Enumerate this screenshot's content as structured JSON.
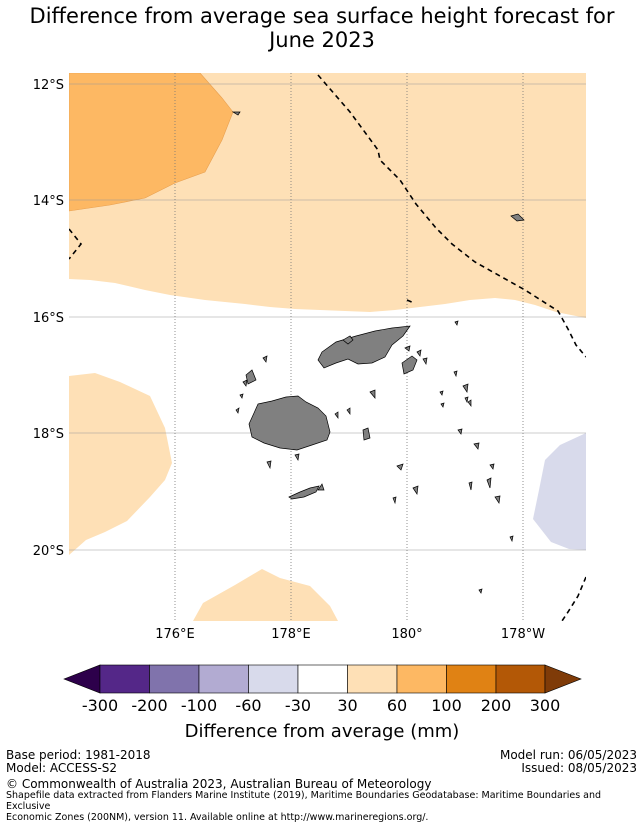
{
  "title": {
    "line1": "Difference from average sea surface height forecast for",
    "line2": "June 2023"
  },
  "map": {
    "lat_labels": [
      "12°S",
      "14°S",
      "16°S",
      "18°S",
      "20°S"
    ],
    "lon_labels": [
      "176°E",
      "178°E",
      "180°",
      "178°W"
    ],
    "extent": {
      "lon_min": 174.3,
      "lon_max": 183.2,
      "lat_top": -11.8,
      "lat_bottom": -21.2
    }
  },
  "colorbar": {
    "title": "Difference from average (mm)",
    "tick_labels": [
      "-300",
      "-200",
      "-100",
      "-60",
      "-30",
      "30",
      "60",
      "100",
      "200",
      "300"
    ],
    "colors": [
      "#2d004b",
      "#542788",
      "#8073ac",
      "#b2abd2",
      "#d8daeb",
      "#ffffff",
      "#fee0b6",
      "#fdb863",
      "#e08214",
      "#b35806",
      "#7f3b08"
    ]
  },
  "footer": {
    "base_period": "Base period: 1981-2018",
    "model": "Model: ACCESS-S2",
    "model_run": "Model run: 06/05/2023",
    "issued": "Issued: 08/05/2023",
    "copyright": "© Commonwealth of Australia 2023, Australian Bureau of Meteorology",
    "shapefile_line1": "Shapefile data extracted from Flanders Marine Institute (2019), Maritime Boundaries Geodatabase: Maritime Boundaries and Exclusive",
    "shapefile_line2": "Economic Zones (200NM), version 11. Available online at http://www.marineregions.org/."
  },
  "colors": {
    "land": "#808080",
    "grid": "#999999"
  }
}
